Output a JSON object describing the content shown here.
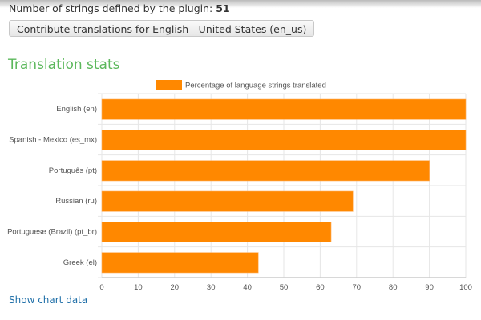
{
  "header": {
    "count_label": "Number of strings defined by the plugin:",
    "count_value": "51",
    "contribute_button": "Contribute translations for English - United States (en_us)"
  },
  "section_title": "Translation stats",
  "show_chart_data": "Show chart data",
  "colors": {
    "bar": "#ff8800",
    "title": "#5cb85c"
  },
  "chart_data": {
    "type": "bar",
    "orientation": "horizontal",
    "categories": [
      "English (en)",
      "Spanish - Mexico (es_mx)",
      "Português (pt)",
      "Russian (ru)",
      "Portuguese (Brazil) (pt_br)",
      "Greek (el)"
    ],
    "series": [
      {
        "name": "Percentage of language strings translated",
        "values": [
          100,
          100,
          90,
          69,
          63,
          43
        ]
      }
    ],
    "xlim": [
      0,
      100
    ],
    "xticks": [
      0,
      10,
      20,
      30,
      40,
      50,
      60,
      70,
      80,
      90,
      100
    ],
    "grid": true,
    "legend": "top-center"
  }
}
